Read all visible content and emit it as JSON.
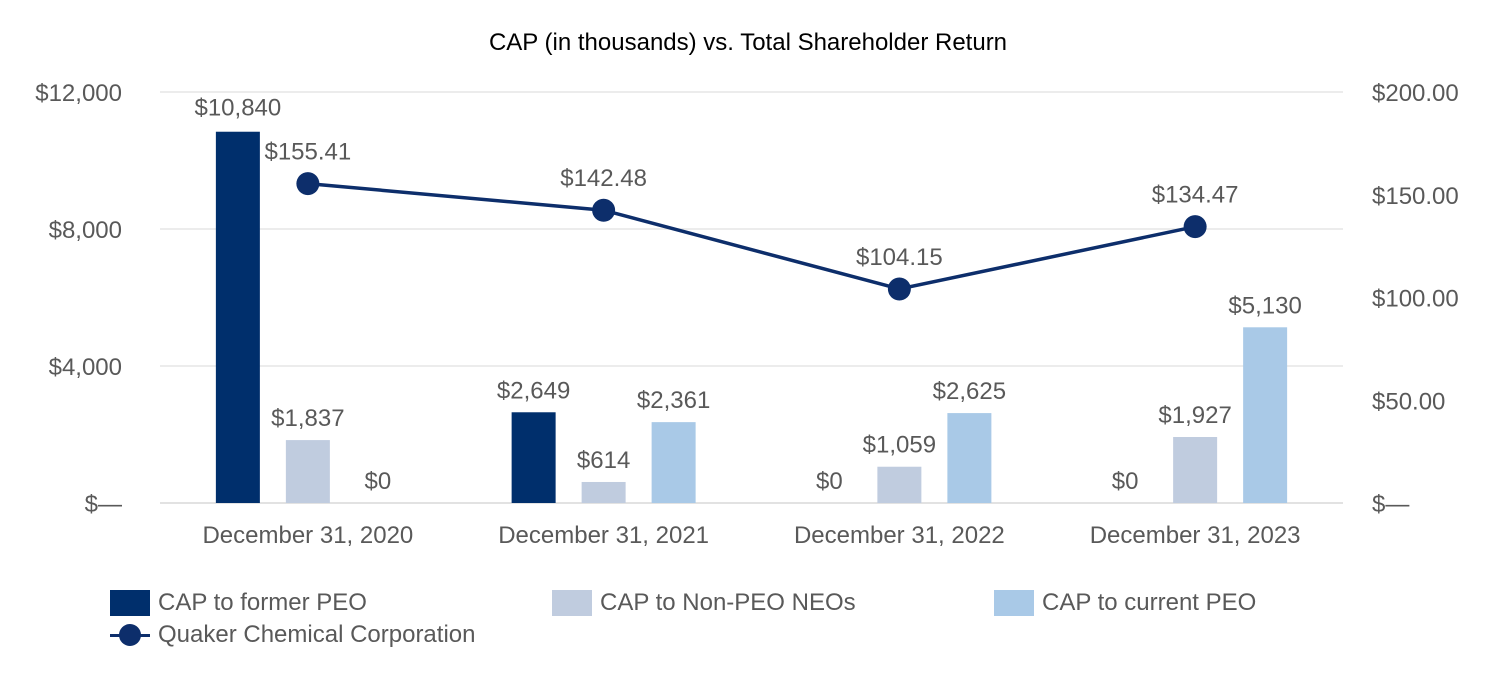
{
  "chart_data": {
    "type": "bar",
    "title": "CAP (in thousands) vs. Total Shareholder Return",
    "categories": [
      "December 31, 2020",
      "December 31, 2021",
      "December 31, 2022",
      "December 31, 2023"
    ],
    "series": [
      {
        "name": "CAP to former PEO",
        "kind": "bar",
        "axis": "left",
        "color": "#002F6C",
        "values": [
          10840,
          2649,
          0,
          0
        ],
        "labels": [
          "$10,840",
          "$2,649",
          "$0",
          "$0"
        ]
      },
      {
        "name": "CAP to Non-PEO NEOs",
        "kind": "bar",
        "axis": "left",
        "color": "#C0CCDF",
        "values": [
          1837,
          614,
          1059,
          1927
        ],
        "labels": [
          "$1,837",
          "$614",
          "$1,059",
          "$1,927"
        ]
      },
      {
        "name": "CAP to current PEO",
        "kind": "bar",
        "axis": "left",
        "color": "#A9C9E7",
        "values": [
          0,
          2361,
          2625,
          5130
        ],
        "labels": [
          "$0",
          "$2,361",
          "$2,625",
          "$5,130"
        ]
      },
      {
        "name": "Quaker Chemical Corporation",
        "kind": "line",
        "axis": "right",
        "color": "#0D2E6B",
        "values": [
          155.41,
          142.48,
          104.15,
          134.47
        ],
        "labels": [
          "$155.41",
          "$142.48",
          "$104.15",
          "$134.47"
        ]
      }
    ],
    "y_left": {
      "range": [
        0,
        12000
      ],
      "ticks": [
        0,
        4000,
        8000,
        12000
      ],
      "tick_labels": [
        "$—",
        "$4,000",
        "$8,000",
        "$12,000"
      ]
    },
    "y_right": {
      "range": [
        0,
        200
      ],
      "ticks": [
        0,
        50,
        100,
        150,
        200
      ],
      "tick_labels": [
        "$—",
        "$50.00",
        "$100.00",
        "$150.00",
        "$200.00"
      ]
    },
    "grid": true,
    "legend_position": "bottom"
  }
}
